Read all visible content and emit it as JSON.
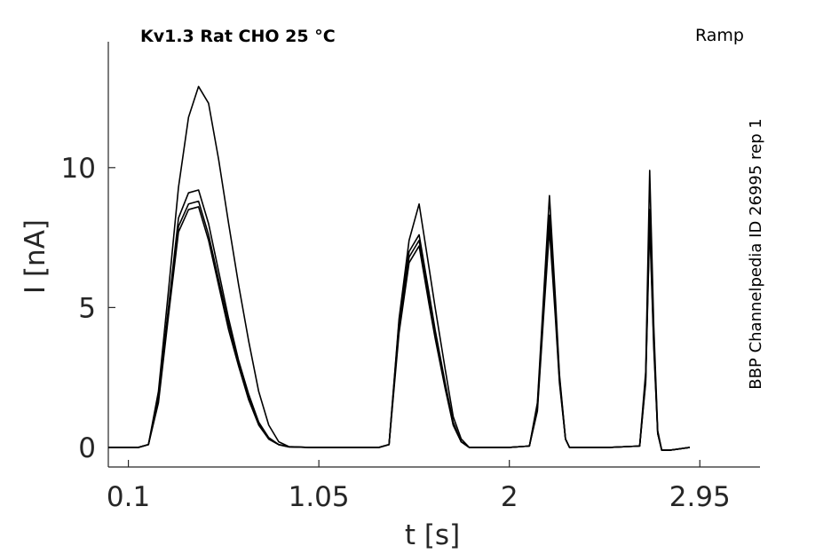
{
  "chart_data": {
    "type": "line",
    "title": "Kv1.3  Rat  CHO  25 °C",
    "protocol_label": "Ramp",
    "side_label": "BBP Channelpedia ID 26995 rep 1",
    "xlabel": "t [s]",
    "ylabel": "I [nA]",
    "xlim": [
      0.0,
      3.25
    ],
    "ylim": [
      -0.7,
      14.5
    ],
    "xticks": [
      0.1,
      1.05,
      2,
      2.95
    ],
    "xtick_labels": [
      "0.1",
      "1.05",
      "2",
      "2.95"
    ],
    "yticks": [
      0,
      5,
      10
    ],
    "ytick_labels": [
      "0",
      "5",
      "10"
    ],
    "grid": false,
    "line_color": "#000000",
    "series": [
      {
        "x": [
          0.0,
          0.15,
          0.2,
          0.25,
          0.3,
          0.35,
          0.4,
          0.45,
          0.5,
          0.55,
          0.6,
          0.65,
          0.7,
          0.75,
          0.8,
          0.85,
          0.9,
          1.0,
          1.2,
          1.35,
          1.4,
          1.45,
          1.5,
          1.55,
          1.6,
          1.63,
          1.68,
          1.72,
          1.76,
          1.8,
          1.85,
          1.9,
          2.0,
          2.1,
          2.14,
          2.17,
          2.2,
          2.23,
          2.25,
          2.28,
          2.3,
          2.4,
          2.5,
          2.65,
          2.68,
          2.7,
          2.72,
          2.74,
          2.76,
          2.8,
          2.9
        ],
        "y": [
          0,
          0.0,
          0.1,
          1.8,
          5.0,
          8.2,
          9.1,
          9.2,
          8.0,
          6.3,
          4.6,
          3.1,
          1.9,
          0.9,
          0.35,
          0.1,
          0.02,
          0,
          0,
          0,
          0.1,
          4.5,
          7.0,
          7.6,
          5.5,
          4.2,
          2.3,
          0.9,
          0.2,
          0.0,
          0,
          0,
          0,
          0.05,
          1.5,
          5.0,
          8.3,
          5.0,
          2.5,
          0.3,
          0.0,
          0,
          0,
          0.05,
          2.5,
          8.5,
          4.0,
          0.5,
          -0.1,
          -0.1,
          0
        ]
      },
      {
        "x": [
          0.0,
          0.15,
          0.2,
          0.25,
          0.3,
          0.35,
          0.4,
          0.45,
          0.5,
          0.55,
          0.6,
          0.65,
          0.7,
          0.75,
          0.8,
          0.85,
          0.9,
          1.0,
          1.2,
          1.35,
          1.4,
          1.45,
          1.5,
          1.55,
          1.6,
          1.63,
          1.68,
          1.72,
          1.76,
          1.8,
          1.85,
          1.9,
          2.0,
          2.1,
          2.14,
          2.17,
          2.2,
          2.23,
          2.25,
          2.28,
          2.3,
          2.4,
          2.5,
          2.65,
          2.68,
          2.7,
          2.72,
          2.74,
          2.76,
          2.8,
          2.9
        ],
        "y": [
          0,
          0.0,
          0.1,
          1.7,
          4.8,
          7.9,
          8.7,
          8.8,
          7.6,
          6.0,
          4.4,
          3.0,
          1.8,
          0.9,
          0.3,
          0.1,
          0.02,
          0,
          0,
          0,
          0.1,
          4.3,
          6.8,
          7.4,
          5.3,
          4.0,
          2.2,
          0.8,
          0.2,
          0.0,
          0,
          0,
          0,
          0.05,
          1.4,
          4.8,
          8.0,
          4.8,
          2.4,
          0.3,
          0.0,
          0,
          0,
          0.05,
          2.4,
          8.2,
          3.8,
          0.5,
          -0.1,
          -0.1,
          0
        ]
      },
      {
        "x": [
          0.0,
          0.15,
          0.2,
          0.25,
          0.3,
          0.35,
          0.4,
          0.45,
          0.5,
          0.55,
          0.6,
          0.65,
          0.7,
          0.75,
          0.8,
          0.85,
          0.9,
          1.0,
          1.2,
          1.35,
          1.4,
          1.45,
          1.5,
          1.55,
          1.6,
          1.63,
          1.68,
          1.72,
          1.76,
          1.8,
          1.85,
          1.9,
          2.0,
          2.1,
          2.14,
          2.17,
          2.2,
          2.23,
          2.25,
          2.28,
          2.3,
          2.4,
          2.5,
          2.65,
          2.68,
          2.7,
          2.72,
          2.74,
          2.76,
          2.8,
          2.9
        ],
        "y": [
          0,
          0.0,
          0.1,
          1.6,
          4.7,
          7.7,
          8.5,
          8.6,
          7.4,
          5.8,
          4.2,
          2.9,
          1.7,
          0.8,
          0.3,
          0.1,
          0.02,
          0,
          0,
          0,
          0.1,
          4.1,
          6.6,
          7.2,
          5.1,
          3.9,
          2.1,
          0.8,
          0.2,
          0.0,
          0,
          0,
          0,
          0.05,
          1.3,
          4.6,
          7.8,
          4.6,
          2.3,
          0.3,
          0.0,
          0,
          0,
          0.05,
          2.3,
          8.0,
          3.6,
          0.5,
          -0.1,
          -0.1,
          0
        ]
      },
      {
        "x": [
          0.0,
          0.15,
          0.2,
          0.25,
          0.3,
          0.35,
          0.4,
          0.45,
          0.5,
          0.55,
          0.6,
          0.65,
          0.7,
          0.75,
          0.8,
          0.85,
          0.9,
          1.0,
          1.2,
          1.35,
          1.4,
          1.45,
          1.5,
          1.55,
          1.6,
          1.63,
          1.68,
          1.72,
          1.76,
          1.8,
          1.85,
          1.9,
          2.0,
          2.1,
          2.14,
          2.17,
          2.2,
          2.23,
          2.25,
          2.28,
          2.3,
          2.4,
          2.5,
          2.65,
          2.68,
          2.7,
          2.72,
          2.74,
          2.76,
          2.8,
          2.9
        ],
        "y": [
          0,
          0.0,
          0.1,
          2.0,
          5.6,
          9.3,
          11.8,
          12.9,
          12.3,
          10.3,
          8.0,
          5.8,
          3.8,
          2.0,
          0.8,
          0.2,
          0.03,
          0,
          0,
          0,
          0.1,
          4.6,
          7.4,
          8.7,
          6.4,
          5.0,
          2.8,
          1.1,
          0.3,
          0.0,
          0,
          0,
          0,
          0.05,
          1.6,
          5.3,
          9.0,
          5.3,
          2.6,
          0.3,
          0.0,
          0,
          0,
          0.05,
          2.7,
          9.9,
          4.4,
          0.6,
          -0.1,
          -0.1,
          0
        ]
      }
    ]
  }
}
